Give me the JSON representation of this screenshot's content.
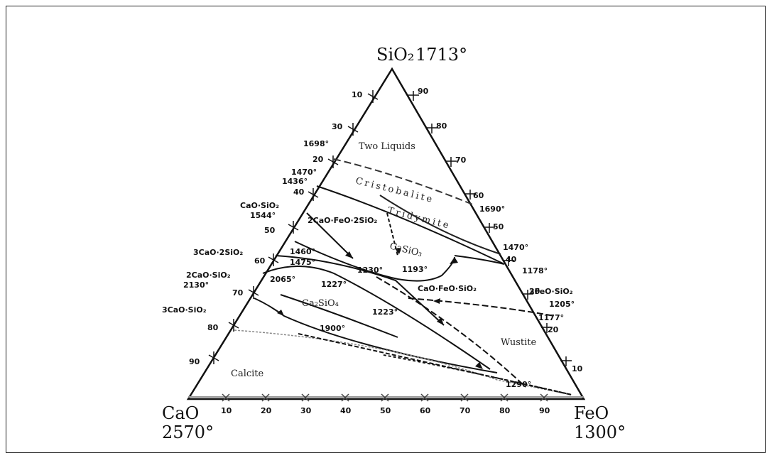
{
  "vertices": {
    "top": {
      "formula": "SiO₂",
      "temp": "1713°"
    },
    "left": {
      "formula": "CaO",
      "temp": "2570°"
    },
    "right": {
      "formula": "FeO",
      "temp": "1300°"
    }
  },
  "ticks": {
    "bottom": [
      "10",
      "20",
      "30",
      "40",
      "50",
      "60",
      "70",
      "80",
      "90"
    ],
    "left": [
      "10",
      "30",
      "20",
      "40",
      "50",
      "60",
      "70",
      "80",
      "90"
    ],
    "right": [
      "90",
      "80",
      "70",
      "60",
      "50",
      "40",
      "30",
      "20",
      "10"
    ]
  },
  "fields": {
    "two_liquids": "Two Liquids",
    "cristobalite": "Cristobalite",
    "tridymite": "Tridymite",
    "wustite": "Wustite",
    "calcite": "Calcite",
    "ca2sio4": "Ca₂SiO₄",
    "cacao_sio2_field": "CaSiO₃",
    "two_cao_feo_2sio2": "2CaO·FeO·2SiO₂"
  },
  "compounds": {
    "cao_sio2": "CaO·SiO₂",
    "three_cao_2sio2": "3CaO·2SiO₂",
    "two_cao_sio2": "2CaO·SiO₂",
    "three_cao_sio2": "3CaO·SiO₂",
    "cao_feo_sio2": "CaO·FeO·SiO₂",
    "two_feo_sio2": "2FeO·SiO₂"
  },
  "temperatures": {
    "t1698": "1698°",
    "t1470a": "1470°",
    "t1436": "1436°",
    "t1544": "1544°",
    "t1460": "1460°",
    "t1475": "1475°",
    "t2130": "2130°",
    "t2065": "2065°",
    "t1690": "1690°",
    "t1470b": "1470°",
    "t1178": "1178°",
    "t1205": "1205°",
    "t1177": "1177°",
    "t1230": "1230°",
    "t1193": "1193°",
    "t1227": "1227°",
    "t1223": "1223°",
    "t1900": "1900°",
    "t1290": "1290°"
  }
}
